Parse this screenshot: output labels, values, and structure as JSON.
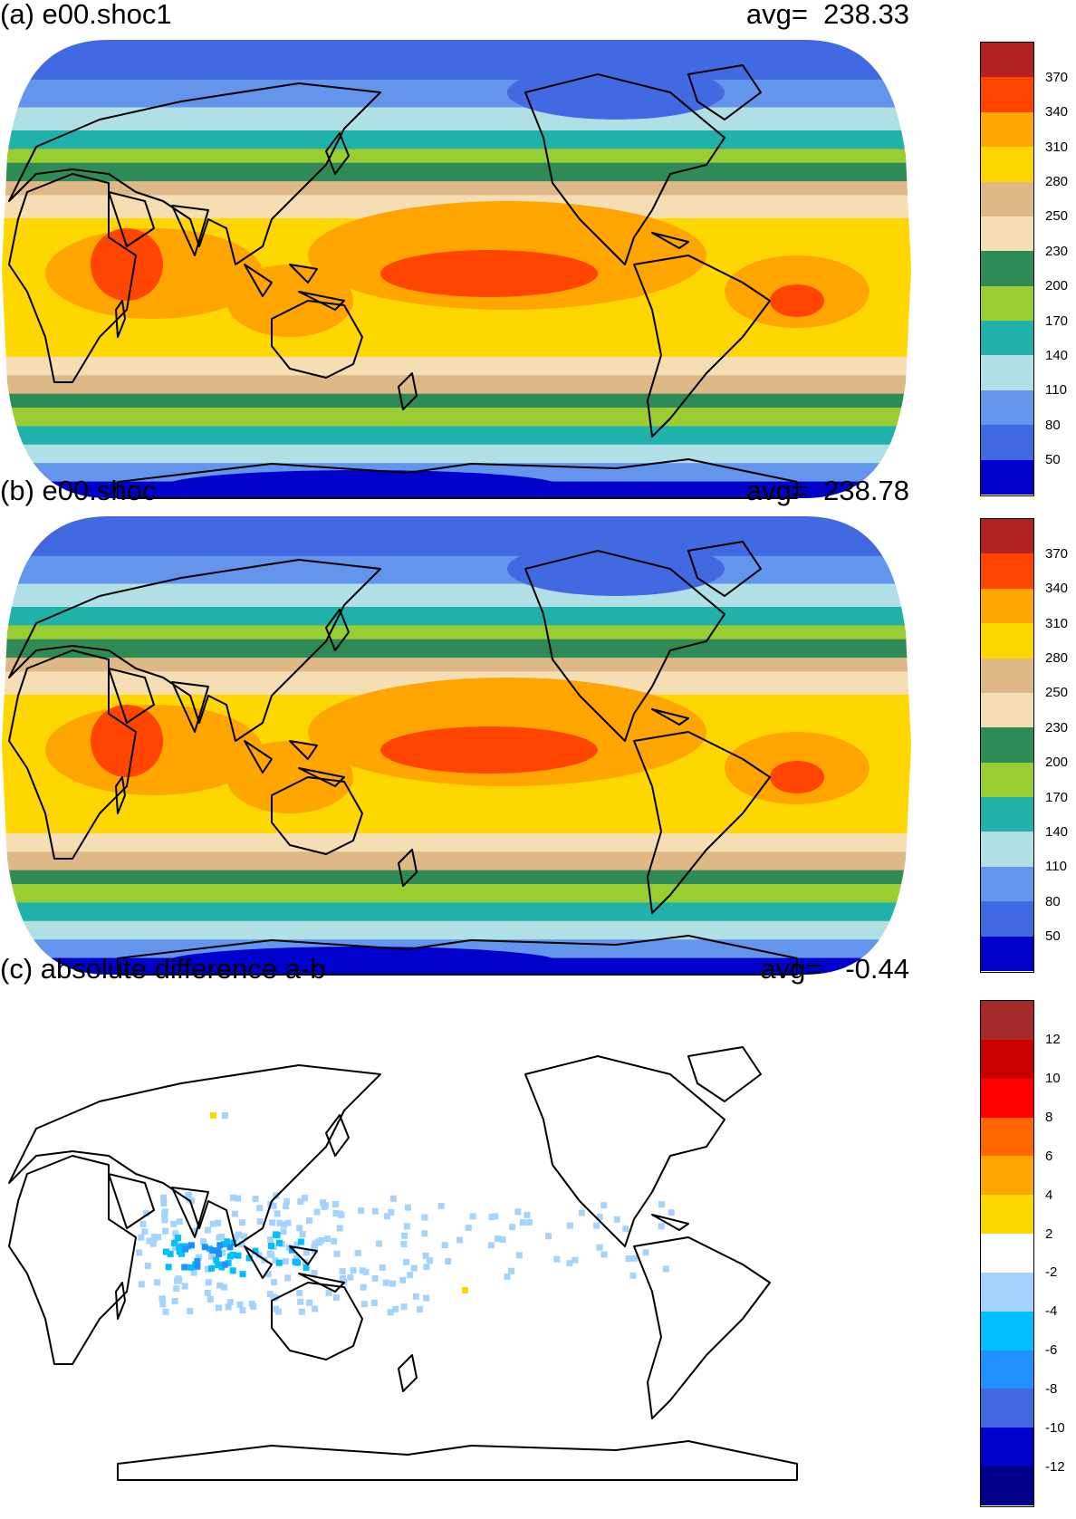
{
  "panels": [
    {
      "title": "(a) e00.shoc1",
      "avg": "avg=  238.33",
      "type": "field",
      "colorbar": {
        "labels": [
          "370",
          "340",
          "310",
          "280",
          "250",
          "230",
          "200",
          "170",
          "140",
          "110",
          "80",
          "50"
        ],
        "colors": [
          "#b22222",
          "#ff4500",
          "#ffa500",
          "#ffd700",
          "#deb887",
          "#f5deb3",
          "#2e8b57",
          "#9acd32",
          "#20b2aa",
          "#b0e0e6",
          "#6495ed",
          "#4169e1",
          "#0000cd"
        ]
      }
    },
    {
      "title": "(b) e00.shoc",
      "avg": "avg=  238.78",
      "type": "field",
      "colorbar": {
        "labels": [
          "370",
          "340",
          "310",
          "280",
          "250",
          "230",
          "200",
          "170",
          "140",
          "110",
          "80",
          "50"
        ],
        "colors": [
          "#b22222",
          "#ff4500",
          "#ffa500",
          "#ffd700",
          "#deb887",
          "#f5deb3",
          "#2e8b57",
          "#9acd32",
          "#20b2aa",
          "#b0e0e6",
          "#6495ed",
          "#4169e1",
          "#0000cd"
        ]
      }
    },
    {
      "title": "(c) absolute difference a-b",
      "avg": "avg=   -0.44",
      "type": "difference",
      "colorbar": {
        "labels": [
          "12",
          "10",
          "8",
          "6",
          "4",
          "2",
          "-2",
          "-4",
          "-6",
          "-8",
          "-10",
          "-12"
        ],
        "colors": [
          "#a52a2a",
          "#cd0000",
          "#ff0000",
          "#ff6600",
          "#ffa500",
          "#ffd700",
          "#ffffff",
          "#a4d3ff",
          "#00bfff",
          "#1e90ff",
          "#4169e1",
          "#0000cd",
          "#00008b"
        ]
      }
    }
  ],
  "chart_data": {
    "type": "heatmap",
    "projection": "Robinson (Pacific-centered)",
    "panels": [
      {
        "name": "(a) e00.shoc1",
        "global_average": 238.33,
        "contour_levels": [
          50,
          80,
          110,
          140,
          170,
          200,
          230,
          250,
          280,
          310,
          340,
          370
        ]
      },
      {
        "name": "(b) e00.shoc",
        "global_average": 238.78,
        "contour_levels": [
          50,
          80,
          110,
          140,
          170,
          200,
          230,
          250,
          280,
          310,
          340,
          370
        ]
      },
      {
        "name": "(c) absolute difference a-b",
        "global_average": -0.44,
        "contour_levels": [
          -12,
          -10,
          -8,
          -6,
          -4,
          -2,
          2,
          4,
          6,
          8,
          10,
          12
        ]
      }
    ]
  }
}
